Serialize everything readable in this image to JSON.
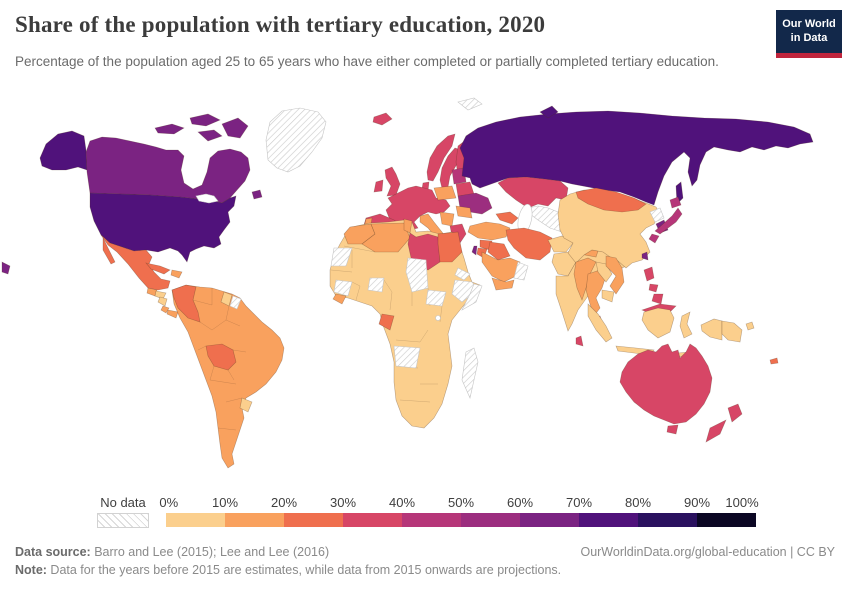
{
  "header": {
    "title": "Share of the population with tertiary education, 2020",
    "subtitle": "Percentage of the population aged 25 to 65 years who have either completed or partially completed tertiary education."
  },
  "logo": {
    "line1": "Our World",
    "line2": "in Data",
    "bg_color": "#12284a",
    "accent_color": "#c0243c"
  },
  "legend": {
    "no_data_label": "No data",
    "ticks": [
      "0%",
      "10%",
      "20%",
      "30%",
      "40%",
      "50%",
      "60%",
      "70%",
      "80%",
      "90%",
      "100%"
    ]
  },
  "footer": {
    "source_label": "Data source:",
    "source_text": " Barro and Lee (2015); Lee and Lee (2016)",
    "right_text": "OurWorldinData.org/global-education | CC BY",
    "note_label": "Note:",
    "note_text": " Data for the years before 2015 are estimates, while data from 2015 onwards are projections."
  },
  "chart_data": {
    "type": "choropleth",
    "title": "Share of the population with tertiary education",
    "year": "2020",
    "unit": "% of population aged 25–65 with (partial) tertiary education",
    "legend_position": "bottom",
    "legend_bins": [
      {
        "range": "0-10%",
        "color": "#fbcf8d"
      },
      {
        "range": "10-20%",
        "color": "#f9a15e"
      },
      {
        "range": "20-30%",
        "color": "#ef6f4e"
      },
      {
        "range": "30-40%",
        "color": "#d74666"
      },
      {
        "range": "40-50%",
        "color": "#b63679"
      },
      {
        "range": "50-60%",
        "color": "#9c2e7f"
      },
      {
        "range": "60-70%",
        "color": "#7b2382"
      },
      {
        "range": "70-80%",
        "color": "#50127b"
      },
      {
        "range": "80-90%",
        "color": "#2a115f"
      },
      {
        "range": "90-100%",
        "color": "#0b0724"
      },
      {
        "range": "No data",
        "color": "hatch"
      }
    ],
    "countries": [
      {
        "id": "usa",
        "name": "United States",
        "bin": "70-80%",
        "color": "#50127b"
      },
      {
        "id": "canada",
        "name": "Canada",
        "bin": "60-70%",
        "color": "#7b2382"
      },
      {
        "id": "greenland",
        "name": "Greenland",
        "bin": "No data",
        "color": "hatch"
      },
      {
        "id": "mexico",
        "name": "Mexico",
        "bin": "20-30%",
        "color": "#ef6f4e"
      },
      {
        "id": "guatemala",
        "name": "Guatemala",
        "bin": "10-20%",
        "color": "#f9a15e"
      },
      {
        "id": "honduras",
        "name": "Honduras",
        "bin": "0-10%",
        "color": "#fbcf8d"
      },
      {
        "id": "nicaragua",
        "name": "Nicaragua",
        "bin": "0-10%",
        "color": "#fbcf8d"
      },
      {
        "id": "costa-rica",
        "name": "Costa Rica",
        "bin": "10-20%",
        "color": "#f9a15e"
      },
      {
        "id": "panama",
        "name": "Panama",
        "bin": "10-20%",
        "color": "#f9a15e"
      },
      {
        "id": "cuba",
        "name": "Cuba",
        "bin": "20-30%",
        "color": "#ef6f4e"
      },
      {
        "id": "hispaniola",
        "name": "Dominican Republic / Haiti",
        "bin": "10-20%",
        "color": "#f9a15e"
      },
      {
        "id": "south-america",
        "name": "South America (Brazil, Argentina, Chile, Peru, Venezuela, Ecuador, Paraguay)",
        "bin": "10-20%",
        "color": "#f9a15e"
      },
      {
        "id": "colombia",
        "name": "Colombia",
        "bin": "20-30%",
        "color": "#ef6f4e"
      },
      {
        "id": "guyana",
        "name": "Guyana",
        "bin": "0-10%",
        "color": "#fbcf8d"
      },
      {
        "id": "suriname",
        "name": "Suriname",
        "bin": "No data",
        "color": "hatch"
      },
      {
        "id": "bolivia",
        "name": "Bolivia",
        "bin": "20-30%",
        "color": "#ef6f4e"
      },
      {
        "id": "uruguay",
        "name": "Uruguay",
        "bin": "0-10%",
        "color": "#fbcf8d"
      },
      {
        "id": "iceland",
        "name": "Iceland",
        "bin": "30-40%",
        "color": "#d74666"
      },
      {
        "id": "ireland",
        "name": "Ireland",
        "bin": "30-40%",
        "color": "#d74666"
      },
      {
        "id": "uk",
        "name": "United Kingdom",
        "bin": "30-40%",
        "color": "#d74666"
      },
      {
        "id": "norway",
        "name": "Norway",
        "bin": "30-40%",
        "color": "#d74666"
      },
      {
        "id": "sweden",
        "name": "Sweden",
        "bin": "30-40%",
        "color": "#d74666"
      },
      {
        "id": "finland",
        "name": "Finland",
        "bin": "30-40%",
        "color": "#d74666"
      },
      {
        "id": "denmark",
        "name": "Denmark",
        "bin": "30-40%",
        "color": "#d74666"
      },
      {
        "id": "europe-mainland",
        "name": "Western & Central Europe (France, Germany, etc.)",
        "bin": "30-40%",
        "color": "#d74666"
      },
      {
        "id": "iberia",
        "name": "Spain",
        "bin": "30-40%",
        "color": "#d74666"
      },
      {
        "id": "portugal",
        "name": "Portugal",
        "bin": "10-20%",
        "color": "#f9a15e"
      },
      {
        "id": "italy",
        "name": "Italy",
        "bin": "10-20%",
        "color": "#f9a15e"
      },
      {
        "id": "poland",
        "name": "Poland",
        "bin": "10-20%",
        "color": "#f9a15e"
      },
      {
        "id": "baltics",
        "name": "Baltic states",
        "bin": "40-50%",
        "color": "#b63679"
      },
      {
        "id": "belarus",
        "name": "Belarus",
        "bin": "30-40%",
        "color": "#d74666"
      },
      {
        "id": "ukraine",
        "name": "Ukraine",
        "bin": "50-60%",
        "color": "#9c2e7f"
      },
      {
        "id": "romania",
        "name": "Romania",
        "bin": "10-20%",
        "color": "#f9a15e"
      },
      {
        "id": "balkans",
        "name": "Balkans (Serbia, Bulgaria, etc.)",
        "bin": "10-20%",
        "color": "#f9a15e"
      },
      {
        "id": "greece",
        "name": "Greece",
        "bin": "30-40%",
        "color": "#d74666"
      },
      {
        "id": "russia",
        "name": "Russia",
        "bin": "70-80%",
        "color": "#50127b"
      },
      {
        "id": "svalbard",
        "name": "Svalbard",
        "bin": "No data",
        "color": "hatch"
      },
      {
        "id": "kazakhstan",
        "name": "Kazakhstan",
        "bin": "30-40%",
        "color": "#d74666"
      },
      {
        "id": "central-asia",
        "name": "Turkmenistan / Uzbekistan / Tajikistan",
        "bin": "No data",
        "color": "hatch"
      },
      {
        "id": "kyrgyzstan",
        "name": "Kyrgyzstan",
        "bin": "20-30%",
        "color": "#ef6f4e"
      },
      {
        "id": "caucasus",
        "name": "Caucasus (Georgia, Azerbaijan)",
        "bin": "20-30%",
        "color": "#ef6f4e"
      },
      {
        "id": "turkey",
        "name": "Turkey",
        "bin": "10-20%",
        "color": "#f9a15e"
      },
      {
        "id": "syria",
        "name": "Syria",
        "bin": "20-30%",
        "color": "#ef6f4e"
      },
      {
        "id": "israel",
        "name": "Israel",
        "bin": "60-70%",
        "color": "#7b2382"
      },
      {
        "id": "jordan",
        "name": "Jordan",
        "bin": "20-30%",
        "color": "#ef6f4e"
      },
      {
        "id": "iraq",
        "name": "Iraq",
        "bin": "20-30%",
        "color": "#ef6f4e"
      },
      {
        "id": "iran",
        "name": "Iran",
        "bin": "20-30%",
        "color": "#ef6f4e"
      },
      {
        "id": "saudi-arabia",
        "name": "Saudi Arabia",
        "bin": "10-20%",
        "color": "#f9a15e"
      },
      {
        "id": "yemen",
        "name": "Yemen",
        "bin": "10-20%",
        "color": "#f9a15e"
      },
      {
        "id": "oman",
        "name": "Oman / UAE",
        "bin": "No data",
        "color": "hatch"
      },
      {
        "id": "afghanistan",
        "name": "Afghanistan",
        "bin": "0-10%",
        "color": "#fbcf8d"
      },
      {
        "id": "pakistan",
        "name": "Pakistan",
        "bin": "0-10%",
        "color": "#fbcf8d"
      },
      {
        "id": "india",
        "name": "India",
        "bin": "0-10%",
        "color": "#fbcf8d"
      },
      {
        "id": "nepal",
        "name": "Nepal",
        "bin": "10-20%",
        "color": "#f9a15e"
      },
      {
        "id": "bangladesh",
        "name": "Bangladesh",
        "bin": "10-20%",
        "color": "#f9a15e"
      },
      {
        "id": "sri-lanka",
        "name": "Sri Lanka",
        "bin": "30-40%",
        "color": "#d74666"
      },
      {
        "id": "china",
        "name": "China",
        "bin": "0-10%",
        "color": "#fbcf8d"
      },
      {
        "id": "mongolia",
        "name": "Mongolia",
        "bin": "20-30%",
        "color": "#ef6f4e"
      },
      {
        "id": "north-korea",
        "name": "North Korea",
        "bin": "No data",
        "color": "hatch"
      },
      {
        "id": "south-korea",
        "name": "South Korea",
        "bin": "60-70%",
        "color": "#7b2382"
      },
      {
        "id": "japan",
        "name": "Japan",
        "bin": "40-50%",
        "color": "#b63679"
      },
      {
        "id": "taiwan",
        "name": "Taiwan",
        "bin": "60-70%",
        "color": "#7b2382"
      },
      {
        "id": "myanmar",
        "name": "Myanmar",
        "bin": "10-20%",
        "color": "#f9a15e"
      },
      {
        "id": "thailand",
        "name": "Thailand",
        "bin": "10-20%",
        "color": "#f9a15e"
      },
      {
        "id": "laos",
        "name": "Laos",
        "bin": "0-10%",
        "color": "#fbcf8d"
      },
      {
        "id": "vietnam",
        "name": "Vietnam",
        "bin": "10-20%",
        "color": "#f9a15e"
      },
      {
        "id": "cambodia",
        "name": "Cambodia",
        "bin": "0-10%",
        "color": "#fbcf8d"
      },
      {
        "id": "malaysia",
        "name": "Malaysia",
        "bin": "30-40%",
        "color": "#d74666"
      },
      {
        "id": "indonesia",
        "name": "Indonesia",
        "bin": "0-10%",
        "color": "#fbcf8d"
      },
      {
        "id": "papua-new-guinea",
        "name": "Papua New Guinea",
        "bin": "0-10%",
        "color": "#fbcf8d"
      },
      {
        "id": "philippines",
        "name": "Philippines",
        "bin": "30-40%",
        "color": "#d74666"
      },
      {
        "id": "australia",
        "name": "Australia",
        "bin": "30-40%",
        "color": "#d74666"
      },
      {
        "id": "new-zealand",
        "name": "New Zealand",
        "bin": "30-40%",
        "color": "#d74666"
      },
      {
        "id": "new-caledonia",
        "name": "New Caledonia / Vanuatu",
        "bin": "20-30%",
        "color": "#ef6f4e"
      },
      {
        "id": "africa",
        "name": "Sub-Saharan Africa (most countries)",
        "bin": "0-10%",
        "color": "#fbcf8d"
      },
      {
        "id": "morocco",
        "name": "Morocco",
        "bin": "10-20%",
        "color": "#f9a15e"
      },
      {
        "id": "western-sahara",
        "name": "Western Sahara",
        "bin": "No data",
        "color": "hatch"
      },
      {
        "id": "algeria",
        "name": "Algeria",
        "bin": "10-20%",
        "color": "#f9a15e"
      },
      {
        "id": "tunisia",
        "name": "Tunisia",
        "bin": "10-20%",
        "color": "#f9a15e"
      },
      {
        "id": "libya",
        "name": "Libya",
        "bin": "30-40%",
        "color": "#d74666"
      },
      {
        "id": "egypt",
        "name": "Egypt",
        "bin": "20-30%",
        "color": "#ef6f4e"
      },
      {
        "id": "guinea",
        "name": "Guinea",
        "bin": "No data",
        "color": "hatch"
      },
      {
        "id": "burkina-faso",
        "name": "Burkina Faso",
        "bin": "No data",
        "color": "hatch"
      },
      {
        "id": "liberia",
        "name": "Liberia / Sierra Leone",
        "bin": "10-20%",
        "color": "#f9a15e"
      },
      {
        "id": "chad",
        "name": "Chad",
        "bin": "No data",
        "color": "hatch"
      },
      {
        "id": "south-sudan",
        "name": "South Sudan",
        "bin": "No data",
        "color": "hatch"
      },
      {
        "id": "eritrea",
        "name": "Eritrea",
        "bin": "No data",
        "color": "hatch"
      },
      {
        "id": "ethiopia",
        "name": "Ethiopia",
        "bin": "No data",
        "color": "hatch"
      },
      {
        "id": "somalia",
        "name": "Somalia",
        "bin": "No data",
        "color": "hatch"
      },
      {
        "id": "gabon",
        "name": "Gabon",
        "bin": "20-30%",
        "color": "#ef6f4e"
      },
      {
        "id": "angola",
        "name": "Angola",
        "bin": "No data",
        "color": "hatch"
      },
      {
        "id": "madagascar",
        "name": "Madagascar",
        "bin": "No data",
        "color": "hatch"
      }
    ]
  }
}
